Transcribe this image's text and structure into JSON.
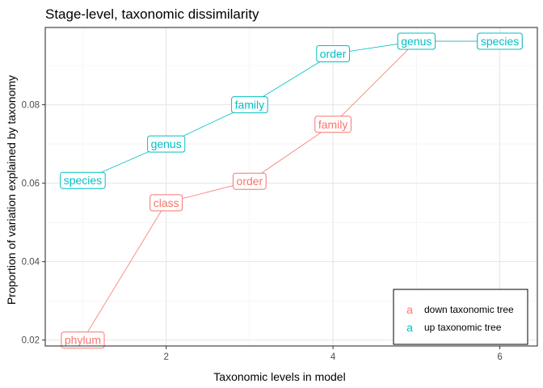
{
  "chart_data": {
    "type": "line",
    "title": "Stage-level, taxonomic dissimilarity",
    "xlabel": "Taxonomic levels in model",
    "ylabel": "Proportion of variation explained by taxonomy",
    "xlim": [
      0.55,
      6.45
    ],
    "ylim": [
      0.0185,
      0.0997
    ],
    "x_ticks": [
      2,
      4,
      6
    ],
    "y_ticks": [
      0.02,
      0.04,
      0.06,
      0.08
    ],
    "x_tick_labels": [
      "2",
      "4",
      "6"
    ],
    "y_tick_labels": [
      "0.02",
      "0.04",
      "0.06",
      "0.08"
    ],
    "grid": true,
    "legend_position": "bottom-right",
    "legend_key_glyph": "a",
    "series": [
      {
        "name": "down taxonomic tree",
        "color": "#F8766D",
        "points": [
          {
            "x": 1,
            "y": 0.02,
            "label": "phylum"
          },
          {
            "x": 2,
            "y": 0.055,
            "label": "class"
          },
          {
            "x": 3,
            "y": 0.0605,
            "label": "order"
          },
          {
            "x": 4,
            "y": 0.075,
            "label": "family"
          },
          {
            "x": 5,
            "y": 0.0962,
            "label": "genus"
          },
          {
            "x": 6,
            "y": 0.0962,
            "label": "species"
          }
        ]
      },
      {
        "name": "up taxonomic tree",
        "color": "#00BFC4",
        "points": [
          {
            "x": 1,
            "y": 0.0607,
            "label": "species"
          },
          {
            "x": 2,
            "y": 0.07,
            "label": "genus"
          },
          {
            "x": 3,
            "y": 0.08,
            "label": "family"
          },
          {
            "x": 4,
            "y": 0.093,
            "label": "order"
          },
          {
            "x": 5,
            "y": 0.0962,
            "label": "genus"
          },
          {
            "x": 6,
            "y": 0.0962,
            "label": "species"
          }
        ]
      }
    ]
  }
}
